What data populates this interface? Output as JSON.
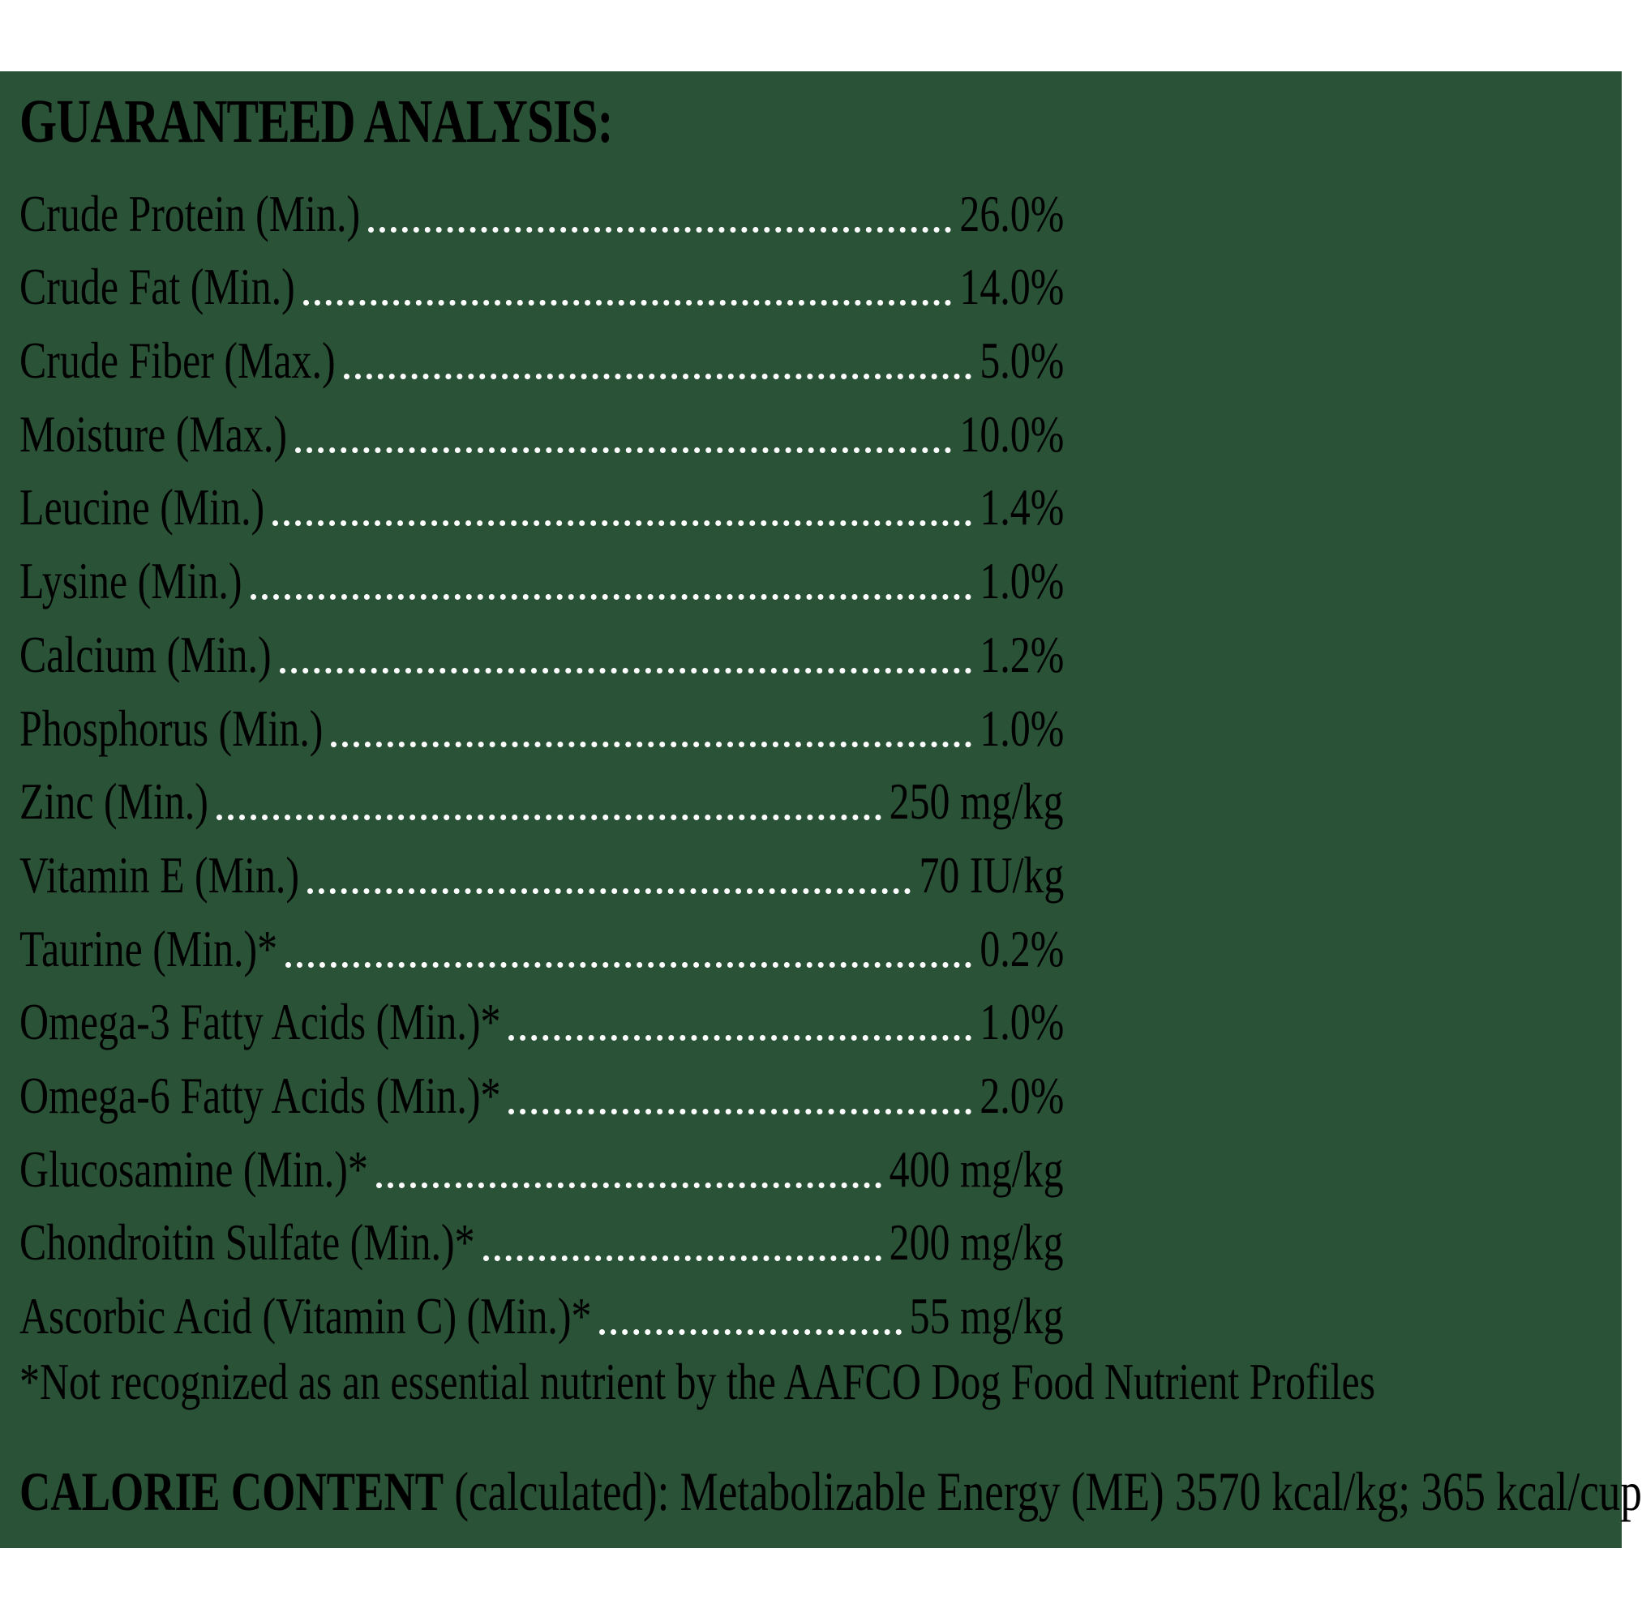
{
  "heading": "GUARANTEED ANALYSIS:",
  "rows": [
    {
      "label": "Crude Protein (Min.)",
      "value": "26.0%"
    },
    {
      "label": "Crude Fat (Min.)",
      "value": "14.0%"
    },
    {
      "label": "Crude Fiber (Max.)",
      "value": "5.0%"
    },
    {
      "label": "Moisture (Max.)",
      "value": "10.0%"
    },
    {
      "label": "Leucine (Min.)",
      "value": "1.4%"
    },
    {
      "label": "Lysine (Min.)",
      "value": "1.0%"
    },
    {
      "label": "Calcium (Min.)",
      "value": "1.2%"
    },
    {
      "label": "Phosphorus (Min.)",
      "value": "1.0%"
    },
    {
      "label": "Zinc (Min.)",
      "value": "250 mg/kg"
    },
    {
      "label": "Vitamin E (Min.)",
      "value": "70 IU/kg"
    },
    {
      "label": "Taurine (Min.)*",
      "value": "0.2%"
    },
    {
      "label": "Omega-3 Fatty Acids (Min.)*",
      "value": "1.0%"
    },
    {
      "label": "Omega-6 Fatty Acids (Min.)*",
      "value": "2.0%"
    },
    {
      "label": "Glucosamine (Min.)*",
      "value": "400 mg/kg"
    },
    {
      "label": "Chondroitin Sulfate (Min.)*",
      "value": "200 mg/kg"
    },
    {
      "label": "Ascorbic Acid (Vitamin C) (Min.)*",
      "value": "55 mg/kg"
    }
  ],
  "footnote": "*Not recognized as an essential nutrient by the AAFCO Dog Food Nutrient Profiles",
  "calorie": {
    "label": "CALORIE CONTENT",
    "text": " (calculated): Metabolizable Energy (ME) 3570 kcal/kg; 365 kcal/cup"
  },
  "colors": {
    "panel_background": "#2a5237",
    "text": "#ffffff",
    "page_background": "#ffffff"
  }
}
